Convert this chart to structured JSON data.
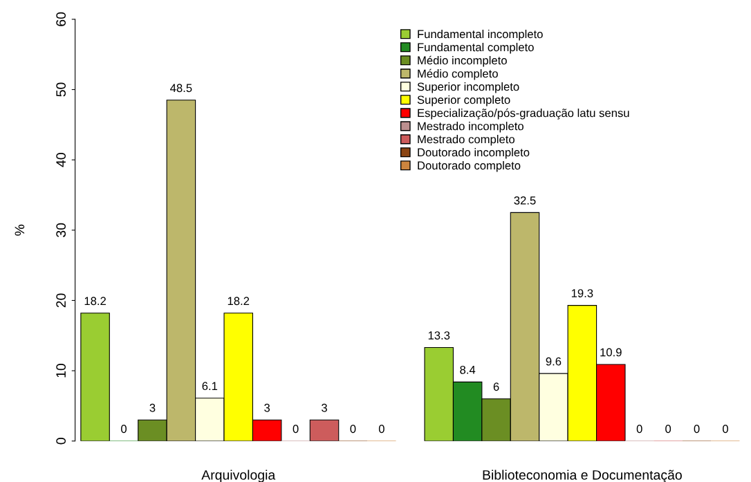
{
  "chart_data": {
    "type": "bar",
    "ylabel": "%",
    "categories": [
      "Arquivologia",
      "Biblioteconomia e Documentação"
    ],
    "ylim": [
      0,
      60
    ],
    "yticks": [
      0,
      10,
      20,
      30,
      40,
      50,
      60
    ],
    "grid": false,
    "legend": "top right",
    "data_labels": true,
    "series": [
      {
        "name": "Fundamental incompleto",
        "color": "#9acd32",
        "values": [
          18.2,
          13.3
        ]
      },
      {
        "name": "Fundamental completo",
        "color": "#228b22",
        "values": [
          0,
          8.4
        ]
      },
      {
        "name": "Médio incompleto",
        "color": "#6b8e23",
        "values": [
          3,
          6
        ]
      },
      {
        "name": "Médio completo",
        "color": "#bdb76b",
        "values": [
          48.5,
          32.5
        ]
      },
      {
        "name": "Superior incompleto",
        "color": "#ffffe0",
        "values": [
          6.1,
          9.6
        ]
      },
      {
        "name": "Superior completo",
        "color": "#ffff00",
        "values": [
          18.2,
          19.3
        ]
      },
      {
        "name": "Especialização/pós-graduação latu sensu",
        "color": "#ff0000",
        "values": [
          3,
          10.9
        ]
      },
      {
        "name": "Mestrado incompleto",
        "color": "#bc8f8f",
        "values": [
          0,
          0
        ]
      },
      {
        "name": "Mestrado completo",
        "color": "#cd5c5c",
        "values": [
          3,
          0
        ]
      },
      {
        "name": "Doutorado incompleto",
        "color": "#8b4513",
        "values": [
          0,
          0
        ]
      },
      {
        "name": "Doutorado completo",
        "color": "#cd853f",
        "values": [
          0,
          0
        ]
      }
    ]
  }
}
